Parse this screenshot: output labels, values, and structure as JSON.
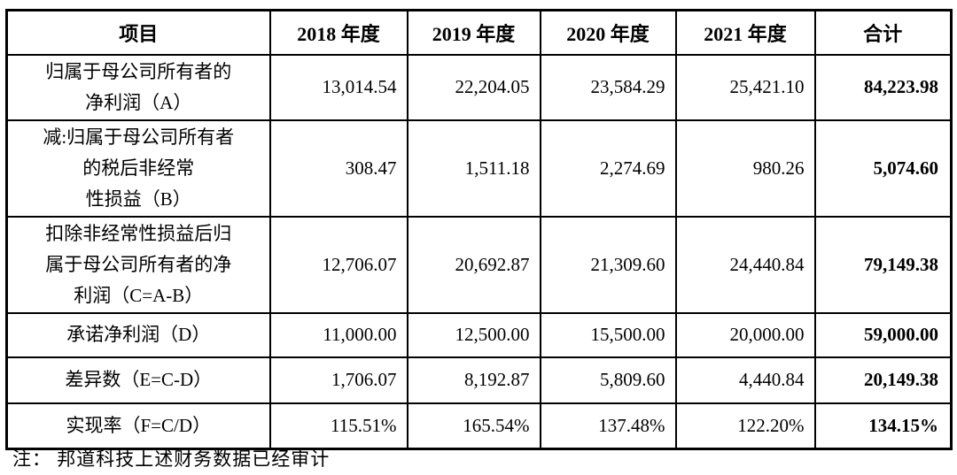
{
  "table": {
    "columns": [
      "项目",
      "2018 年度",
      "2019 年度",
      "2020 年度",
      "2021 年度",
      "合计"
    ],
    "rows": [
      {
        "label": "归属于母公司所有者的\n净利润（A）",
        "values": [
          "13,014.54",
          "22,204.05",
          "23,584.29",
          "25,421.10",
          "84,223.98"
        ]
      },
      {
        "label": "减:归属于母公司所有者\n的税后非经常\n性损益（B）",
        "values": [
          "308.47",
          "1,511.18",
          "2,274.69",
          "980.26",
          "5,074.60"
        ]
      },
      {
        "label": "扣除非经常性损益后归\n属于母公司所有者的净\n利润（C=A-B）",
        "values": [
          "12,706.07",
          "20,692.87",
          "21,309.60",
          "24,440.84",
          "79,149.38"
        ]
      },
      {
        "label": "承诺净利润（D）",
        "values": [
          "11,000.00",
          "12,500.00",
          "15,500.00",
          "20,000.00",
          "59,000.00"
        ]
      },
      {
        "label": "差异数（E=C-D）",
        "values": [
          "1,706.07",
          "8,192.87",
          "5,809.60",
          "4,440.84",
          "20,149.38"
        ]
      },
      {
        "label": "实现率（F=C/D）",
        "values": [
          "115.51%",
          "165.54%",
          "137.48%",
          "122.20%",
          "134.15%"
        ]
      }
    ]
  },
  "note": "注： 邦道科技上述财务数据已经审计",
  "colors": {
    "border": "#000000",
    "text": "#000000",
    "background": "#ffffff"
  }
}
